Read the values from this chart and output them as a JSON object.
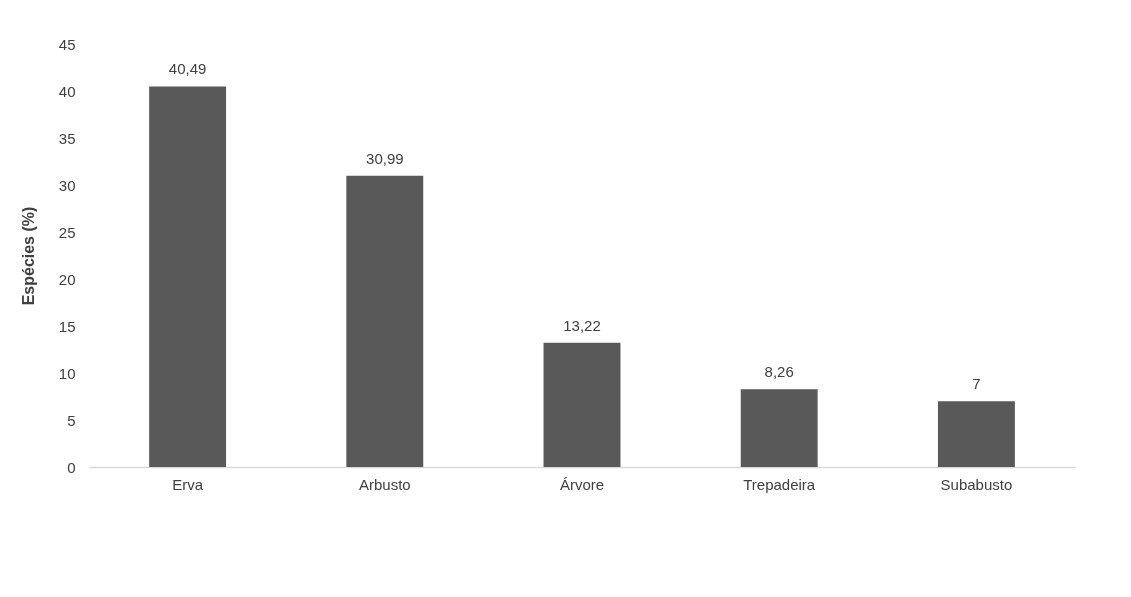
{
  "chart_data": {
    "type": "bar",
    "ylabel": "Espécies (%)",
    "categories": [
      "Erva",
      "Arbusto",
      "Árvore",
      "Trepadeira",
      "Subabusto"
    ],
    "values": [
      40.49,
      30.99,
      13.22,
      8.26,
      7
    ],
    "value_labels": [
      "40,49",
      "30,99",
      "13,22",
      "8,26",
      "7"
    ],
    "color": "#595959",
    "ylim": [
      0,
      45
    ],
    "yticks": [
      0,
      5,
      10,
      15,
      20,
      25,
      30,
      35,
      40,
      45
    ],
    "grid": false
  }
}
